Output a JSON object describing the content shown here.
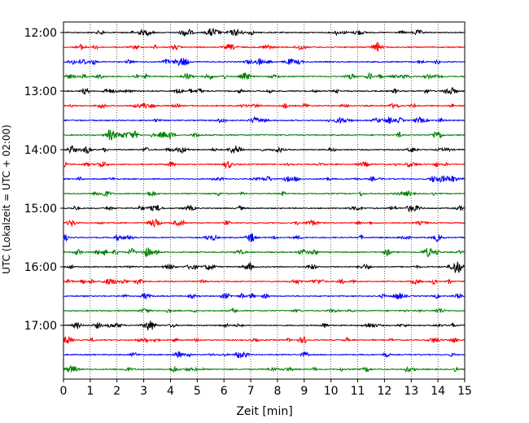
{
  "chart_data": {
    "type": "line",
    "title": "",
    "xlabel": "Zeit  [min]",
    "ylabel": "UTC (Lokalzeit = UTC + 02:00)",
    "xlim": [
      0,
      15
    ],
    "x_ticks": [
      "0",
      "1",
      "2",
      "3",
      "4",
      "5",
      "6",
      "7",
      "8",
      "9",
      "10",
      "11",
      "12",
      "13",
      "14",
      "15"
    ],
    "y_ticks": [
      "12:00",
      "13:00",
      "14:00",
      "15:00",
      "16:00",
      "17:00"
    ],
    "grid": "vertical-dotted",
    "traces": [
      {
        "start": "12:00",
        "color": "#000000"
      },
      {
        "start": "12:15",
        "color": "#ff0000"
      },
      {
        "start": "12:30",
        "color": "#0000ff"
      },
      {
        "start": "12:45",
        "color": "#008000"
      },
      {
        "start": "13:00",
        "color": "#000000"
      },
      {
        "start": "13:15",
        "color": "#ff0000"
      },
      {
        "start": "13:30",
        "color": "#0000ff"
      },
      {
        "start": "13:45",
        "color": "#008000"
      },
      {
        "start": "14:00",
        "color": "#000000"
      },
      {
        "start": "14:15",
        "color": "#ff0000"
      },
      {
        "start": "14:30",
        "color": "#0000ff"
      },
      {
        "start": "14:45",
        "color": "#008000"
      },
      {
        "start": "15:00",
        "color": "#000000"
      },
      {
        "start": "15:15",
        "color": "#ff0000"
      },
      {
        "start": "15:30",
        "color": "#0000ff"
      },
      {
        "start": "15:45",
        "color": "#008000"
      },
      {
        "start": "16:00",
        "color": "#000000"
      },
      {
        "start": "16:15",
        "color": "#ff0000"
      },
      {
        "start": "16:30",
        "color": "#0000ff"
      },
      {
        "start": "16:45",
        "color": "#008000"
      },
      {
        "start": "17:00",
        "color": "#000000"
      },
      {
        "start": "17:15",
        "color": "#ff0000"
      },
      {
        "start": "17:30",
        "color": "#0000ff"
      },
      {
        "start": "17:45",
        "color": "#008000"
      }
    ]
  }
}
